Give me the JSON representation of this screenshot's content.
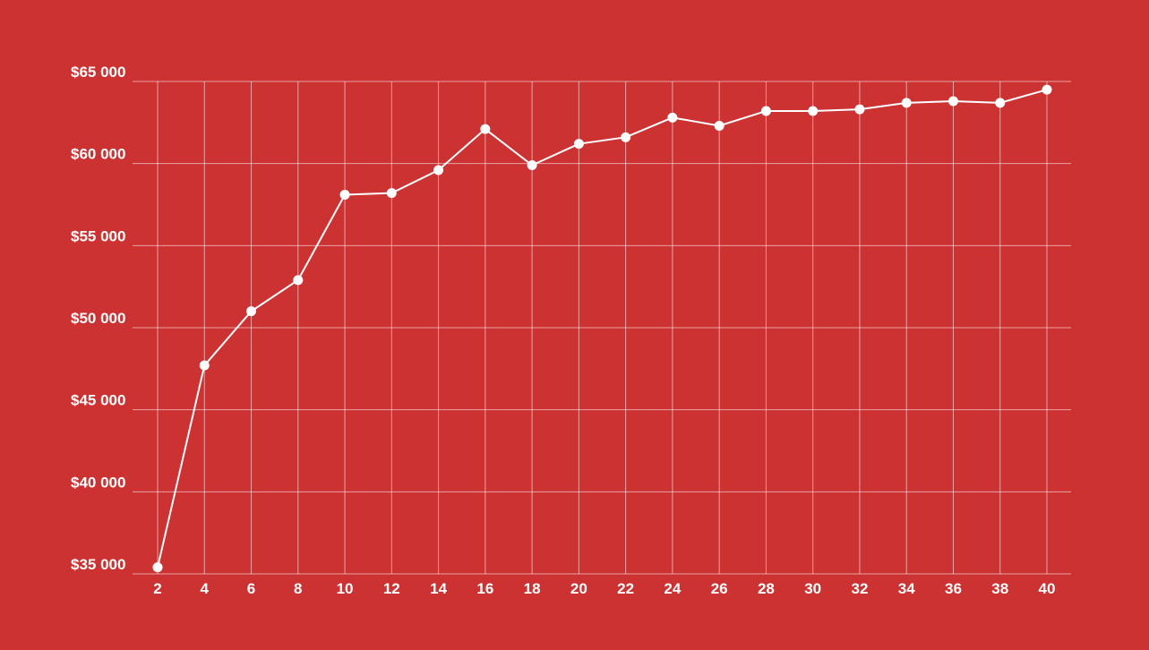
{
  "chart_data": {
    "type": "line",
    "title": "",
    "xlabel": "",
    "ylabel": "",
    "x": [
      2,
      4,
      6,
      8,
      10,
      12,
      14,
      16,
      18,
      20,
      22,
      24,
      26,
      28,
      30,
      32,
      34,
      36,
      38,
      40
    ],
    "series": [
      {
        "values": [
          35400,
          47700,
          51000,
          52900,
          58100,
          58200,
          59600,
          62100,
          59900,
          61200,
          61600,
          62800,
          62300,
          63200,
          63200,
          63300,
          63700,
          63800,
          63700,
          64500
        ]
      }
    ],
    "ylim": [
      35000,
      65000
    ],
    "y_ticks": [
      35000,
      40000,
      45000,
      50000,
      55000,
      60000,
      65000
    ],
    "y_tick_labels": [
      "$35 000",
      "$40 000",
      "$45 000",
      "$50 000",
      "$55 000",
      "$60 000",
      "$65 000"
    ],
    "x_ticks": [
      "2",
      "4",
      "6",
      "8",
      "10",
      "12",
      "14",
      "16",
      "18",
      "20",
      "22",
      "24",
      "26",
      "28",
      "30",
      "32",
      "34",
      "36",
      "38",
      "40"
    ],
    "grid": true,
    "colors": {
      "background": "#cd3232",
      "line": "#ffffff",
      "grid": "#ffffff",
      "text": "#ffffff"
    }
  }
}
